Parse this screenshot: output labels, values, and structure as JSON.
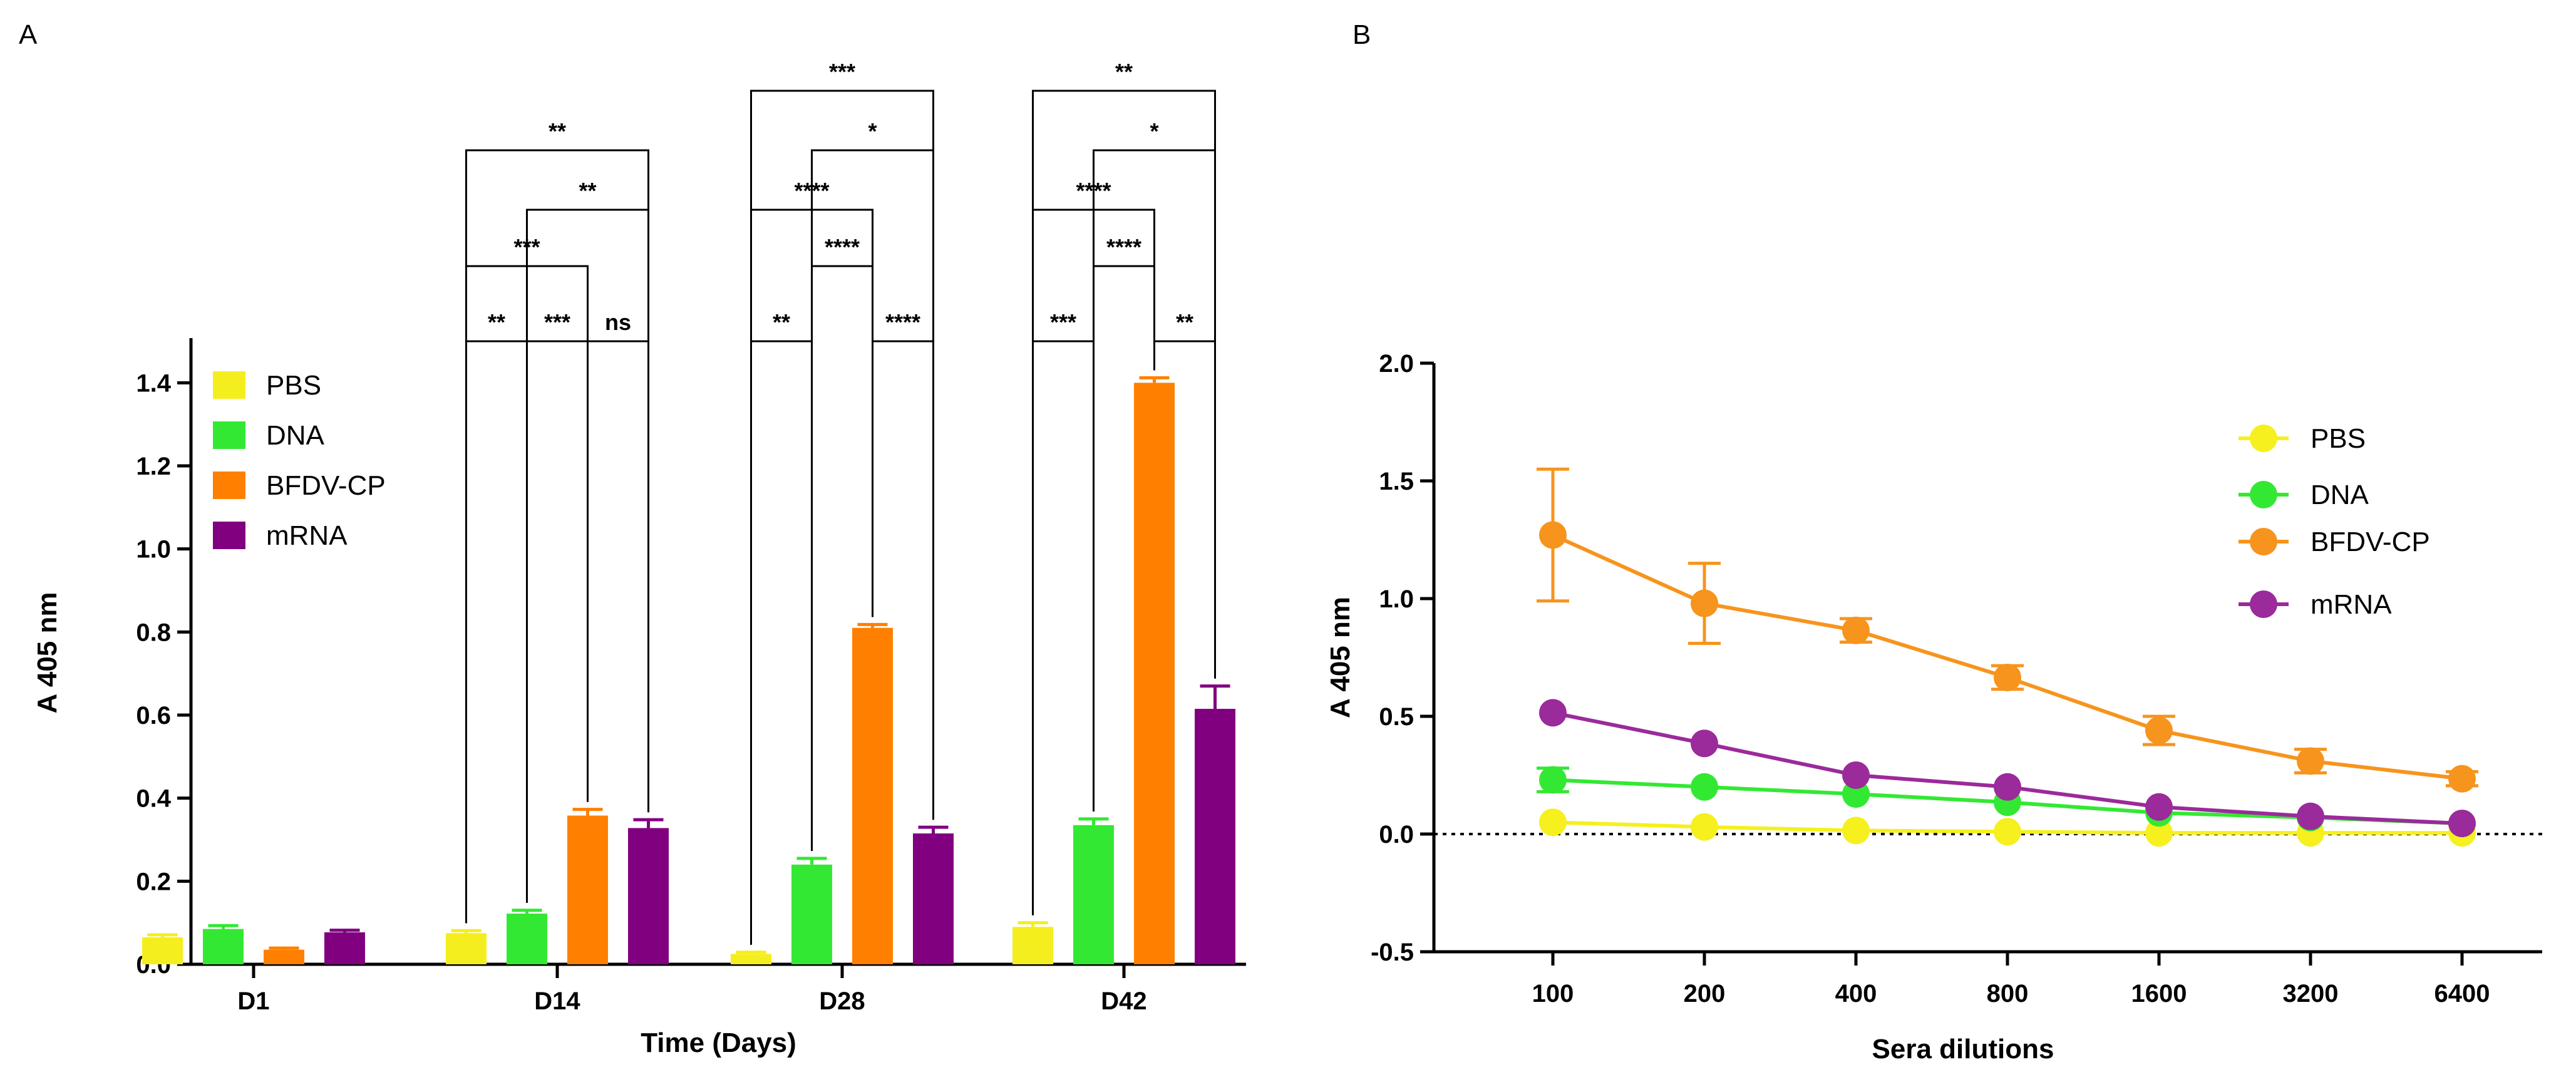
{
  "panels": {
    "a_label": "A",
    "b_label": "B"
  },
  "chart_data": [
    {
      "type": "bar",
      "panel": "A",
      "xlabel": "Time (Days)",
      "ylabel": "A 405 nm",
      "ylim": [
        0,
        1.5
      ],
      "yticks": [
        "0.0",
        "0.2",
        "0.4",
        "0.6",
        "0.8",
        "1.0",
        "1.2",
        "1.4"
      ],
      "categories": [
        "D1",
        "D14",
        "D28",
        "D42"
      ],
      "series": [
        {
          "name": "PBS",
          "color": "#f5ee1e",
          "values": [
            0.065,
            0.075,
            0.025,
            0.09
          ],
          "errors": [
            0.006,
            0.006,
            0.004,
            0.01
          ]
        },
        {
          "name": "DNA",
          "color": "#33e833",
          "values": [
            0.085,
            0.122,
            0.24,
            0.335
          ],
          "errors": [
            0.008,
            0.008,
            0.015,
            0.015
          ]
        },
        {
          "name": "BFDV-CP",
          "color": "#ff8000",
          "values": [
            0.035,
            0.358,
            0.81,
            1.4
          ],
          "errors": [
            0.004,
            0.015,
            0.008,
            0.012
          ]
        },
        {
          "name": "mRNA",
          "color": "#800080",
          "values": [
            0.077,
            0.328,
            0.315,
            0.615
          ],
          "errors": [
            0.005,
            0.02,
            0.015,
            0.055
          ]
        }
      ],
      "legend_position": "top-left",
      "significance": [
        {
          "group": "D14",
          "from": "PBS",
          "to": "DNA",
          "label": "**",
          "level": 0
        },
        {
          "group": "D14",
          "from": "DNA",
          "to": "BFDV-CP",
          "label": "***",
          "level": 0
        },
        {
          "group": "D14",
          "from": "BFDV-CP",
          "to": "mRNA",
          "label": "ns",
          "level": 0
        },
        {
          "group": "D14",
          "from": "PBS",
          "to": "BFDV-CP",
          "label": "***",
          "level": 1
        },
        {
          "group": "D14",
          "from": "DNA",
          "to": "mRNA",
          "label": "**",
          "level": 2
        },
        {
          "group": "D14",
          "from": "PBS",
          "to": "mRNA",
          "label": "**",
          "level": 3
        },
        {
          "group": "D28",
          "from": "PBS",
          "to": "DNA",
          "label": "**",
          "level": 0
        },
        {
          "group": "D28",
          "from": "BFDV-CP",
          "to": "mRNA",
          "label": "****",
          "level": 0
        },
        {
          "group": "D28",
          "from": "DNA",
          "to": "BFDV-CP",
          "label": "****",
          "level": 1
        },
        {
          "group": "D28",
          "from": "PBS",
          "to": "BFDV-CP",
          "label": "****",
          "level": 2
        },
        {
          "group": "D28",
          "from": "DNA",
          "to": "mRNA",
          "label": "*",
          "level": 3
        },
        {
          "group": "D28",
          "from": "PBS",
          "to": "mRNA",
          "label": "***",
          "level": 4
        },
        {
          "group": "D42",
          "from": "PBS",
          "to": "DNA",
          "label": "***",
          "level": 0
        },
        {
          "group": "D42",
          "from": "BFDV-CP",
          "to": "mRNA",
          "label": "**",
          "level": 0
        },
        {
          "group": "D42",
          "from": "DNA",
          "to": "BFDV-CP",
          "label": "****",
          "level": 1
        },
        {
          "group": "D42",
          "from": "PBS",
          "to": "BFDV-CP",
          "label": "****",
          "level": 2
        },
        {
          "group": "D42",
          "from": "DNA",
          "to": "mRNA",
          "label": "*",
          "level": 3
        },
        {
          "group": "D42",
          "from": "PBS",
          "to": "mRNA",
          "label": "**",
          "level": 4
        }
      ]
    },
    {
      "type": "line",
      "panel": "B",
      "xlabel": "Sera dilutions",
      "ylabel": "A 405 nm",
      "ylim": [
        -0.5,
        2.0
      ],
      "yticks": [
        "-0.5",
        "0.0",
        "0.5",
        "1.0",
        "1.5",
        "2.0"
      ],
      "x": [
        "100",
        "200",
        "400",
        "800",
        "1600",
        "3200",
        "6400"
      ],
      "reference_line_y": 0,
      "series": [
        {
          "name": "PBS",
          "color": "#f5f01e",
          "values": [
            0.05,
            0.03,
            0.015,
            0.01,
            0.005,
            0.005,
            0.005
          ],
          "errors": [
            0.01,
            0.01,
            0.008,
            0.006,
            0.005,
            0.005,
            0.005
          ]
        },
        {
          "name": "DNA",
          "color": "#33e833",
          "values": [
            0.23,
            0.2,
            0.17,
            0.135,
            0.09,
            0.07,
            0.045
          ],
          "errors": [
            0.05,
            0.02,
            0.02,
            0.02,
            0.02,
            0.01,
            0.01
          ]
        },
        {
          "name": "BFDV-CP",
          "color": "#f7941d",
          "values": [
            1.27,
            0.98,
            0.865,
            0.665,
            0.44,
            0.31,
            0.235
          ],
          "errors": [
            0.28,
            0.17,
            0.05,
            0.05,
            0.06,
            0.05,
            0.03
          ]
        },
        {
          "name": "mRNA",
          "color": "#9b2a9b",
          "values": [
            0.515,
            0.385,
            0.25,
            0.2,
            0.115,
            0.075,
            0.045
          ],
          "errors": [
            0.015,
            0.015,
            0.01,
            0.01,
            0.01,
            0.01,
            0.01
          ]
        }
      ],
      "legend_position": "top-right"
    }
  ]
}
